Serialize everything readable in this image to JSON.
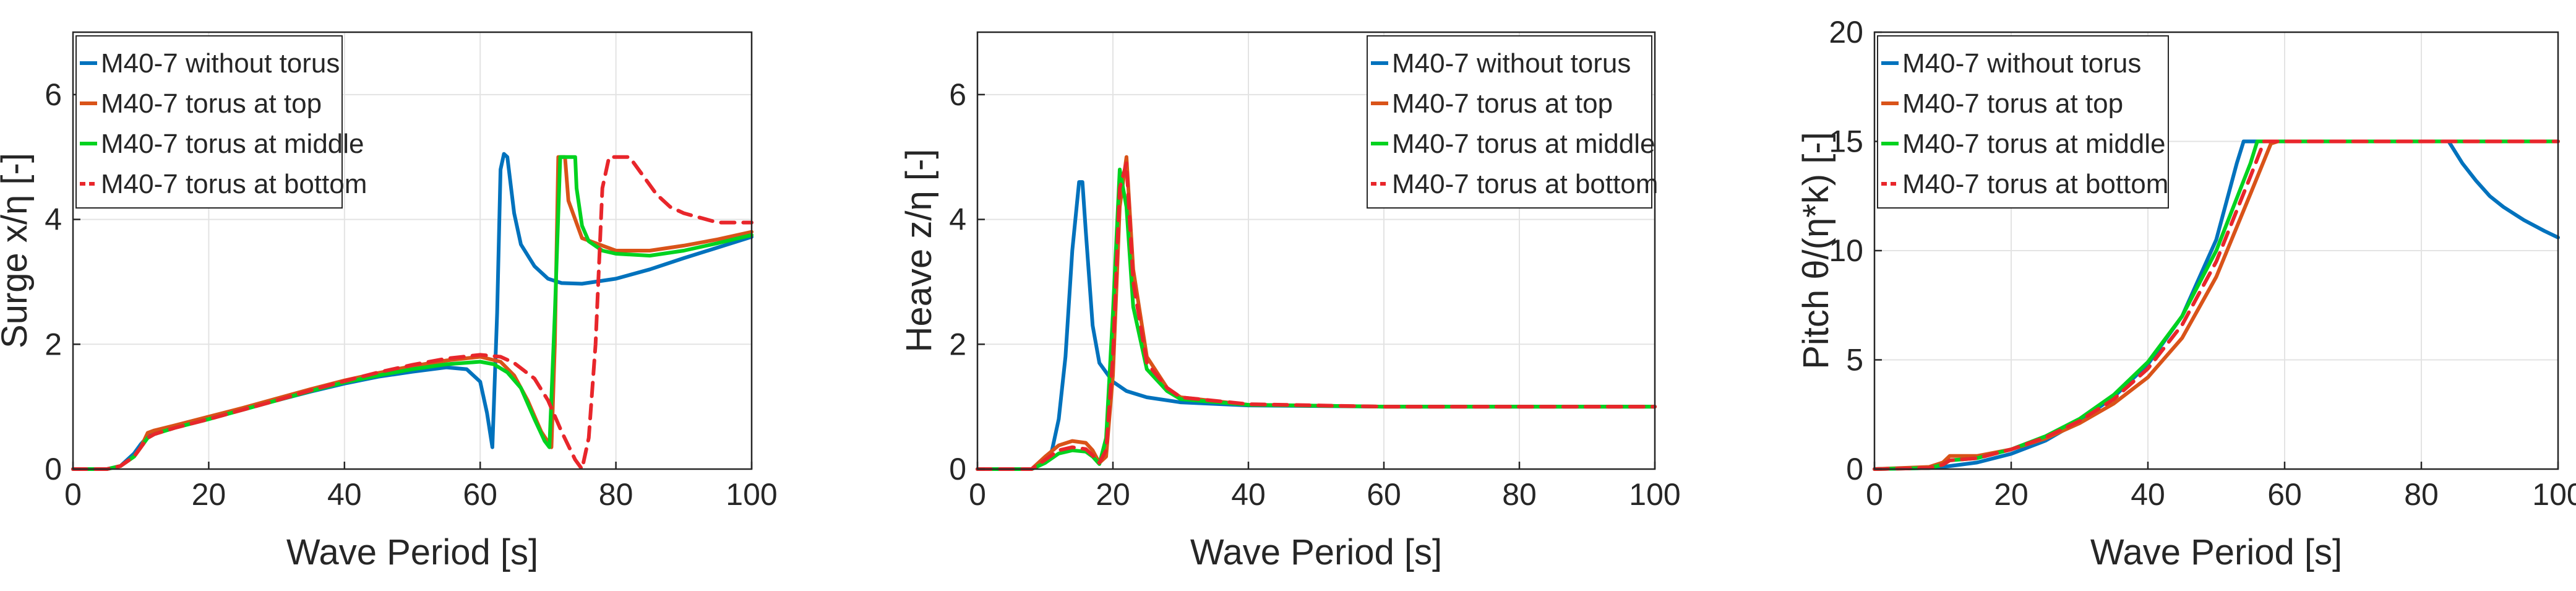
{
  "chart_data": [
    {
      "type": "line",
      "xlabel": "Wave Period [s]",
      "ylabel": "Surge x/η [-]",
      "xlim": [
        0,
        100
      ],
      "ylim": [
        0,
        7
      ],
      "xticks": [
        "0",
        "20",
        "40",
        "60",
        "80",
        "100"
      ],
      "yticks": [
        "0",
        "2",
        "4",
        "6"
      ],
      "grid": true,
      "legend_position": "top-left",
      "series": [
        {
          "name": "M40-7 without torus",
          "color": "#0072BD",
          "dash": "solid",
          "x": [
            0,
            5,
            7,
            9,
            10,
            11,
            12,
            15,
            20,
            25,
            30,
            35,
            40,
            45,
            50,
            55,
            58,
            60,
            61,
            61.8,
            62.5,
            63,
            63.5,
            64,
            65,
            66,
            68,
            70,
            72,
            75,
            80,
            85,
            90,
            95,
            100
          ],
          "y": [
            0,
            0,
            0.05,
            0.25,
            0.4,
            0.52,
            0.58,
            0.68,
            0.82,
            0.96,
            1.1,
            1.24,
            1.37,
            1.48,
            1.56,
            1.63,
            1.6,
            1.4,
            0.9,
            0.35,
            2.5,
            4.8,
            5.05,
            5.0,
            4.1,
            3.6,
            3.25,
            3.05,
            2.98,
            2.97,
            3.05,
            3.2,
            3.38,
            3.55,
            3.72
          ]
        },
        {
          "name": "M40-7 torus at top",
          "color": "#D95319",
          "dash": "solid",
          "x": [
            0,
            5,
            7,
            9,
            10,
            11,
            12,
            15,
            20,
            25,
            30,
            35,
            40,
            45,
            50,
            55,
            60,
            63,
            65,
            67,
            69,
            70.5,
            71,
            71.5,
            72.5,
            73,
            75,
            80,
            85,
            90,
            95,
            100
          ],
          "y": [
            0,
            0,
            0.05,
            0.2,
            0.35,
            0.58,
            0.62,
            0.7,
            0.84,
            0.98,
            1.13,
            1.28,
            1.42,
            1.54,
            1.65,
            1.74,
            1.8,
            1.72,
            1.5,
            1.1,
            0.6,
            0.35,
            2.0,
            5.0,
            5.0,
            4.3,
            3.7,
            3.5,
            3.5,
            3.58,
            3.68,
            3.8
          ]
        },
        {
          "name": "M40-7 torus at middle",
          "color": "#00D21F",
          "dash": "solid",
          "x": [
            0,
            5,
            7,
            9,
            10,
            11,
            12,
            15,
            20,
            25,
            30,
            35,
            40,
            45,
            50,
            55,
            60,
            62,
            64,
            66,
            68,
            69.5,
            70.2,
            71,
            71.8,
            72,
            74,
            74.2,
            75,
            76,
            78,
            80,
            85,
            90,
            95,
            100
          ],
          "y": [
            0,
            0,
            0.05,
            0.2,
            0.35,
            0.5,
            0.56,
            0.66,
            0.8,
            0.95,
            1.1,
            1.25,
            1.39,
            1.5,
            1.6,
            1.68,
            1.72,
            1.68,
            1.55,
            1.3,
            0.8,
            0.45,
            0.35,
            2.5,
            5.0,
            5.0,
            5.0,
            4.5,
            3.9,
            3.65,
            3.5,
            3.45,
            3.42,
            3.5,
            3.62,
            3.75
          ]
        },
        {
          "name": "M40-7 torus at bottom",
          "color": "#E8262B",
          "dash": "dashed",
          "x": [
            0,
            5,
            7,
            9,
            10,
            11,
            12,
            15,
            20,
            25,
            30,
            35,
            40,
            45,
            50,
            55,
            60,
            63,
            65,
            68,
            70,
            72,
            74,
            75,
            76,
            77,
            78,
            79,
            80,
            82,
            84,
            86,
            88,
            90,
            95,
            100
          ],
          "y": [
            0,
            0,
            0.05,
            0.2,
            0.35,
            0.5,
            0.56,
            0.66,
            0.8,
            0.95,
            1.1,
            1.26,
            1.41,
            1.55,
            1.67,
            1.77,
            1.83,
            1.8,
            1.7,
            1.45,
            1.1,
            0.6,
            0.15,
            0,
            0.5,
            2.0,
            4.5,
            5.0,
            5.0,
            5.0,
            4.7,
            4.4,
            4.2,
            4.1,
            3.95,
            3.95
          ]
        }
      ]
    },
    {
      "type": "line",
      "xlabel": "Wave Period [s]",
      "ylabel": "Heave z/η [-]",
      "xlim": [
        0,
        100
      ],
      "ylim": [
        0,
        7
      ],
      "xticks": [
        "0",
        "20",
        "40",
        "60",
        "80",
        "100"
      ],
      "yticks": [
        "0",
        "2",
        "4",
        "6"
      ],
      "grid": true,
      "legend_position": "top-right",
      "series": [
        {
          "name": "M40-7 without torus",
          "color": "#0072BD",
          "dash": "solid",
          "x": [
            0,
            8,
            10,
            11,
            12,
            13,
            14,
            15,
            15.5,
            16,
            17,
            18,
            20,
            22,
            25,
            30,
            40,
            60,
            80,
            100
          ],
          "y": [
            0,
            0,
            0.1,
            0.3,
            0.8,
            1.8,
            3.5,
            4.6,
            4.6,
            3.8,
            2.3,
            1.7,
            1.4,
            1.25,
            1.15,
            1.07,
            1.02,
            1.0,
            1.0,
            1.0
          ]
        },
        {
          "name": "M40-7 torus at top",
          "color": "#D95319",
          "dash": "solid",
          "x": [
            0,
            8,
            10,
            12,
            14,
            16,
            17,
            18,
            19,
            20,
            21,
            22,
            23,
            25,
            28,
            30,
            40,
            60,
            80,
            100
          ],
          "y": [
            0,
            0,
            0.2,
            0.38,
            0.45,
            0.42,
            0.3,
            0.1,
            0.2,
            1.5,
            4.2,
            5.0,
            3.2,
            1.8,
            1.3,
            1.15,
            1.03,
            1.0,
            1.0,
            1.0
          ]
        },
        {
          "name": "M40-7 torus at middle",
          "color": "#00D21F",
          "dash": "solid",
          "x": [
            0,
            8,
            10,
            12,
            14,
            16,
            17,
            18,
            19,
            20,
            21,
            22,
            23,
            25,
            28,
            30,
            40,
            60,
            80,
            100
          ],
          "y": [
            0,
            0,
            0.1,
            0.25,
            0.3,
            0.28,
            0.2,
            0.08,
            0.5,
            2.5,
            4.8,
            4.2,
            2.6,
            1.6,
            1.25,
            1.12,
            1.03,
            1.0,
            1.0,
            1.0
          ]
        },
        {
          "name": "M40-7 torus at bottom",
          "color": "#E8262B",
          "dash": "dashed",
          "x": [
            0,
            8,
            10,
            12,
            14,
            16,
            17,
            18,
            19,
            20,
            21,
            22,
            23,
            25,
            28,
            30,
            40,
            60,
            80,
            100
          ],
          "y": [
            0,
            0,
            0.15,
            0.3,
            0.35,
            0.32,
            0.22,
            0.1,
            0.3,
            1.8,
            4.5,
            4.9,
            3.0,
            1.7,
            1.3,
            1.15,
            1.04,
            1.0,
            1.0,
            1.0
          ]
        }
      ]
    },
    {
      "type": "line",
      "xlabel": "Wave Period [s]",
      "ylabel": "Pitch θ/(η*k) [-]",
      "xlim": [
        0,
        100
      ],
      "ylim": [
        0,
        20
      ],
      "xticks": [
        "0",
        "20",
        "40",
        "60",
        "80",
        "100"
      ],
      "yticks": [
        "0",
        "5",
        "10",
        "15",
        "20"
      ],
      "grid": true,
      "legend_position": "top-left",
      "series": [
        {
          "name": "M40-7 without torus",
          "color": "#0072BD",
          "dash": "solid",
          "x": [
            0,
            8,
            10,
            15,
            20,
            25,
            30,
            35,
            40,
            45,
            50,
            53,
            54,
            60,
            70,
            80,
            84,
            86,
            88,
            90,
            92,
            95,
            98,
            100
          ],
          "y": [
            0,
            0.05,
            0.1,
            0.3,
            0.7,
            1.3,
            2.2,
            3.3,
            4.8,
            7.0,
            10.5,
            14.0,
            15.0,
            15.0,
            15.0,
            15.0,
            15.0,
            14.0,
            13.2,
            12.5,
            12.0,
            11.4,
            10.9,
            10.6
          ]
        },
        {
          "name": "M40-7 torus at top",
          "color": "#D95319",
          "dash": "solid",
          "x": [
            0,
            8,
            10,
            11,
            15,
            20,
            25,
            30,
            35,
            40,
            45,
            50,
            55,
            58,
            59,
            70,
            80,
            90,
            100
          ],
          "y": [
            0,
            0.1,
            0.3,
            0.6,
            0.6,
            0.9,
            1.4,
            2.1,
            3.0,
            4.2,
            6.0,
            8.8,
            12.6,
            14.9,
            15.0,
            15.0,
            15.0,
            15.0,
            15.0
          ]
        },
        {
          "name": "M40-7 torus at middle",
          "color": "#00D21F",
          "dash": "solid",
          "x": [
            0,
            8,
            10,
            11,
            15,
            20,
            25,
            30,
            35,
            40,
            45,
            50,
            55,
            56,
            60,
            70,
            80,
            90,
            100
          ],
          "y": [
            0,
            0.05,
            0.2,
            0.4,
            0.5,
            0.9,
            1.5,
            2.3,
            3.4,
            4.9,
            7.0,
            10.0,
            14.0,
            15.0,
            15.0,
            15.0,
            15.0,
            15.0,
            15.0
          ]
        },
        {
          "name": "M40-7 torus at bottom",
          "color": "#E8262B",
          "dash": "dashed",
          "x": [
            0,
            8,
            10,
            11,
            15,
            20,
            25,
            30,
            35,
            40,
            45,
            50,
            55,
            57,
            60,
            70,
            80,
            90,
            100
          ],
          "y": [
            0,
            0.05,
            0.2,
            0.4,
            0.5,
            0.9,
            1.45,
            2.2,
            3.2,
            4.6,
            6.6,
            9.5,
            13.4,
            15.0,
            15.0,
            15.0,
            15.0,
            15.0,
            15.0
          ]
        }
      ]
    }
  ]
}
